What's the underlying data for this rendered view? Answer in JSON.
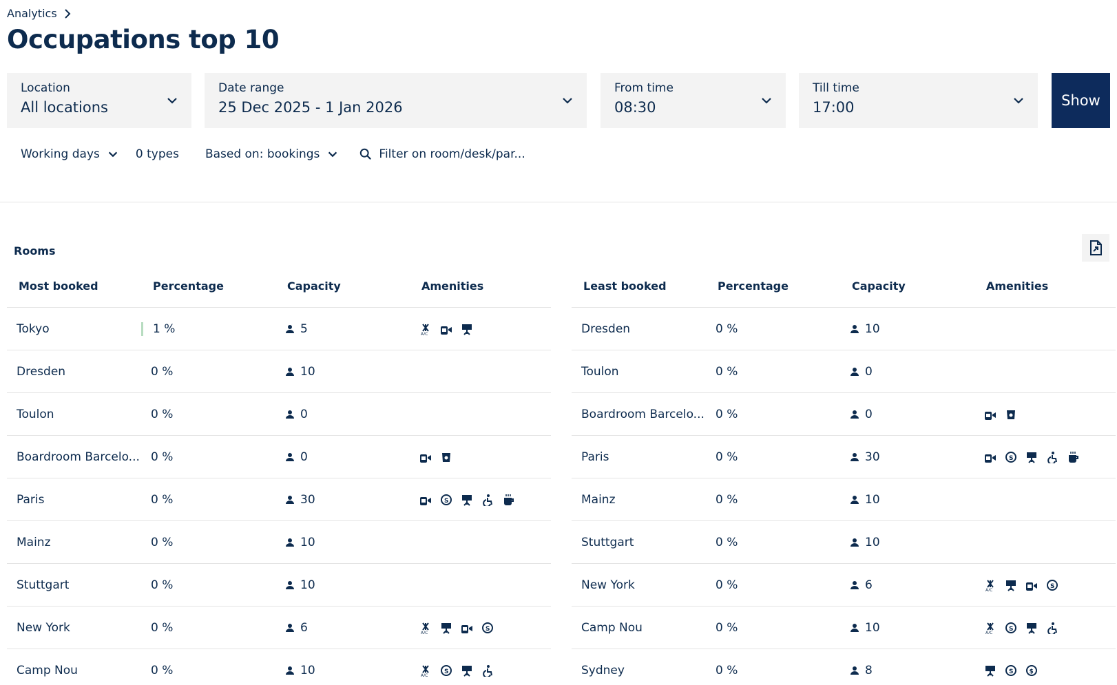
{
  "breadcrumb": {
    "label": "Analytics"
  },
  "page": {
    "title": "Occupations top 10"
  },
  "filters": {
    "location": {
      "label": "Location",
      "value": "All locations"
    },
    "date_range": {
      "label": "Date range",
      "value": "25 Dec 2025 - 1 Jan 2026"
    },
    "from_time": {
      "label": "From time",
      "value": "08:30"
    },
    "till_time": {
      "label": "Till time",
      "value": "17:00"
    },
    "show_label": "Show"
  },
  "subfilters": {
    "days": "Working days",
    "types": "0 types",
    "based_on": "Based on: bookings",
    "search_placeholder": "Filter on room/desk/par..."
  },
  "section": {
    "rooms_label": "Rooms"
  },
  "most_booked": {
    "headers": [
      "Most booked",
      "Percentage",
      "Capacity",
      "Amenities"
    ],
    "rows": [
      {
        "name": "Tokyo",
        "pct": "1 %",
        "cap": "5",
        "amenities": [
          "ac-icon",
          "video-icon",
          "presentation-icon"
        ]
      },
      {
        "name": "Dresden",
        "pct": "0 %",
        "cap": "10",
        "amenities": []
      },
      {
        "name": "Toulon",
        "pct": "0 %",
        "cap": "0",
        "amenities": []
      },
      {
        "name": "Boardroom Barcelo...",
        "pct": "0 %",
        "cap": "0",
        "amenities": [
          "video-icon",
          "cup-icon"
        ]
      },
      {
        "name": "Paris",
        "pct": "0 %",
        "cap": "30",
        "amenities": [
          "video-icon",
          "skype-icon",
          "presentation-icon",
          "accessible-icon",
          "coffee-icon"
        ]
      },
      {
        "name": "Mainz",
        "pct": "0 %",
        "cap": "10",
        "amenities": []
      },
      {
        "name": "Stuttgart",
        "pct": "0 %",
        "cap": "10",
        "amenities": []
      },
      {
        "name": "New York",
        "pct": "0 %",
        "cap": "6",
        "amenities": [
          "ac-icon",
          "presentation-icon",
          "video-icon",
          "skype-icon"
        ]
      },
      {
        "name": "Camp Nou",
        "pct": "0 %",
        "cap": "10",
        "amenities": [
          "ac-icon",
          "skype-icon",
          "presentation-icon",
          "accessible-icon"
        ]
      }
    ]
  },
  "least_booked": {
    "headers": [
      "Least booked",
      "Percentage",
      "Capacity",
      "Amenities"
    ],
    "rows": [
      {
        "name": "Dresden",
        "pct": "0 %",
        "cap": "10",
        "amenities": []
      },
      {
        "name": "Toulon",
        "pct": "0 %",
        "cap": "0",
        "amenities": []
      },
      {
        "name": "Boardroom Barcelo...",
        "pct": "0 %",
        "cap": "0",
        "amenities": [
          "video-icon",
          "cup-icon"
        ]
      },
      {
        "name": "Paris",
        "pct": "0 %",
        "cap": "30",
        "amenities": [
          "video-icon",
          "skype-icon",
          "presentation-icon",
          "accessible-icon",
          "coffee-icon"
        ]
      },
      {
        "name": "Mainz",
        "pct": "0 %",
        "cap": "10",
        "amenities": []
      },
      {
        "name": "Stuttgart",
        "pct": "0 %",
        "cap": "10",
        "amenities": []
      },
      {
        "name": "New York",
        "pct": "0 %",
        "cap": "6",
        "amenities": [
          "ac-icon",
          "presentation-icon",
          "video-icon",
          "skype-icon"
        ]
      },
      {
        "name": "Camp Nou",
        "pct": "0 %",
        "cap": "10",
        "amenities": [
          "ac-icon",
          "skype-icon",
          "presentation-icon",
          "accessible-icon"
        ]
      },
      {
        "name": "Sydney",
        "pct": "0 %",
        "cap": "8",
        "amenities": [
          "presentation-icon",
          "skype-icon",
          "dollar-icon"
        ]
      }
    ]
  },
  "colors": {
    "brand": "#0d2b5c",
    "text": "#0d2b4e",
    "panel": "#f3f3f3",
    "divider": "#e4e4e4",
    "highlight": "#b7dcc0"
  }
}
